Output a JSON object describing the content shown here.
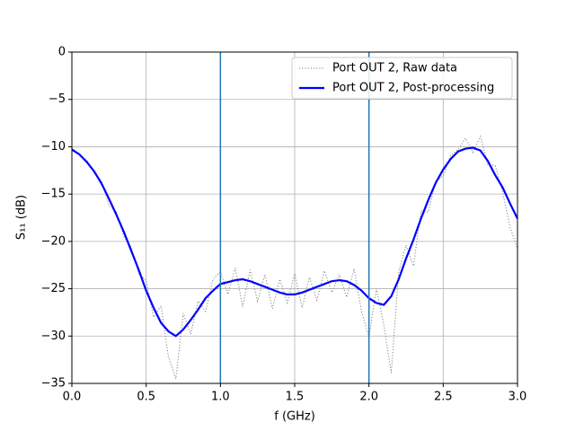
{
  "chart_data": {
    "type": "line",
    "xlabel": "f (GHz)",
    "ylabel": "S₁₁ (dB)",
    "x": [
      0,
      0.05,
      0.1,
      0.15,
      0.2,
      0.25,
      0.3,
      0.35,
      0.4,
      0.45,
      0.5,
      0.55,
      0.6,
      0.65,
      0.7,
      0.75,
      0.8,
      0.85,
      0.9,
      0.95,
      1,
      1.05,
      1.1,
      1.15,
      1.2,
      1.25,
      1.3,
      1.35,
      1.4,
      1.45,
      1.5,
      1.55,
      1.6,
      1.65,
      1.7,
      1.75,
      1.8,
      1.85,
      1.9,
      1.95,
      2,
      2.05,
      2.1,
      2.15,
      2.2,
      2.25,
      2.3,
      2.35,
      2.4,
      2.45,
      2.5,
      2.55,
      2.6,
      2.65,
      2.7,
      2.75,
      2.8,
      2.85,
      2.9,
      2.95,
      3
    ],
    "series": [
      {
        "name": "Port OUT 2, Raw data",
        "color": "#808080",
        "linestyle": "dotted",
        "width": 1,
        "values": [
          -10.1,
          -10.9,
          -11.4,
          -12.8,
          -13.6,
          -16.2,
          -16.9,
          -19.5,
          -20.6,
          -23.4,
          -24.1,
          -28.0,
          -26.8,
          -32.2,
          -34.5,
          -27.6,
          -29.8,
          -26.3,
          -27.4,
          -24.0,
          -23.2,
          -25.6,
          -22.8,
          -26.9,
          -23.0,
          -26.3,
          -23.5,
          -27.1,
          -24.0,
          -26.5,
          -23.4,
          -27.0,
          -23.8,
          -26.2,
          -23.1,
          -25.4,
          -23.5,
          -25.9,
          -22.9,
          -27.4,
          -30.1,
          -25.0,
          -28.8,
          -33.9,
          -23.2,
          -20.4,
          -22.6,
          -16.8,
          -16.9,
          -13.6,
          -13.1,
          -10.9,
          -10.3,
          -9.1,
          -10.6,
          -8.9,
          -11.9,
          -12.0,
          -14.8,
          -18.5,
          -20.8
        ]
      },
      {
        "name": "Port OUT 2, Post-processing",
        "color": "#0000ff",
        "linestyle": "solid",
        "width": 2.2,
        "values": [
          -10.3,
          -10.8,
          -11.6,
          -12.6,
          -13.9,
          -15.5,
          -17.2,
          -19.0,
          -21.0,
          -23.0,
          -25.2,
          -27.0,
          -28.6,
          -29.5,
          -30.0,
          -29.3,
          -28.3,
          -27.2,
          -26.0,
          -25.2,
          -24.5,
          -24.3,
          -24.1,
          -24.0,
          -24.2,
          -24.5,
          -24.8,
          -25.1,
          -25.4,
          -25.6,
          -25.6,
          -25.4,
          -25.1,
          -24.8,
          -24.5,
          -24.2,
          -24.1,
          -24.2,
          -24.6,
          -25.2,
          -26.0,
          -26.5,
          -26.7,
          -25.8,
          -24.0,
          -21.8,
          -19.8,
          -17.6,
          -15.6,
          -13.8,
          -12.4,
          -11.3,
          -10.5,
          -10.2,
          -10.1,
          -10.4,
          -11.5,
          -13.0,
          -14.3,
          -16.0,
          -17.6
        ]
      }
    ],
    "vlines": [
      1,
      2
    ],
    "vline_color": "#1f77b4",
    "xlim": [
      0,
      3
    ],
    "ylim": [
      -35,
      0
    ],
    "xticks": [
      {
        "value": 0,
        "label": "0.0"
      },
      {
        "value": 0.5,
        "label": "0.5"
      },
      {
        "value": 1,
        "label": "1.0"
      },
      {
        "value": 1.5,
        "label": "1.5"
      },
      {
        "value": 2,
        "label": "2.0"
      },
      {
        "value": 2.5,
        "label": "2.5"
      },
      {
        "value": 3,
        "label": "3.0"
      }
    ],
    "yticks": [
      {
        "value": -35,
        "label": "−35"
      },
      {
        "value": -30,
        "label": "−30"
      },
      {
        "value": -25,
        "label": "−25"
      },
      {
        "value": -20,
        "label": "−20"
      },
      {
        "value": -15,
        "label": "−15"
      },
      {
        "value": -10,
        "label": "−10"
      },
      {
        "value": -5,
        "label": "−5"
      },
      0
    ],
    "grid": true,
    "legend": "upper-right"
  }
}
